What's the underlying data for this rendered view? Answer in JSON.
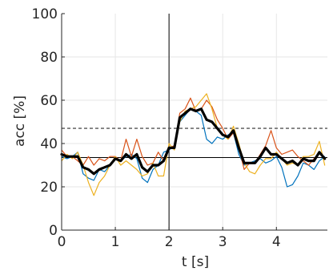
{
  "chart_data": {
    "type": "line",
    "title": "",
    "xlabel": "t [s]",
    "ylabel": "acc [%]",
    "xlim": [
      0,
      4.95
    ],
    "ylim": [
      0,
      100
    ],
    "xticks": [
      0,
      1,
      2,
      3,
      4
    ],
    "xtick_labels": [
      "0",
      "1",
      "2",
      "3",
      "4"
    ],
    "yticks": [
      0,
      20,
      40,
      60,
      80,
      100
    ],
    "ytick_labels": [
      "0",
      "20",
      "40",
      "60",
      "80",
      "100"
    ],
    "grid": true,
    "legend": "none",
    "reference_lines": [
      {
        "orientation": "vertical",
        "x": 2,
        "style": "solid",
        "color": "#000000"
      },
      {
        "orientation": "horizontal",
        "y": 33.5,
        "style": "solid",
        "color": "#000000"
      },
      {
        "orientation": "horizontal",
        "y": 47,
        "style": "dashed",
        "color": "#555555"
      }
    ],
    "x": [
      0,
      0.1,
      0.2,
      0.3,
      0.4,
      0.5,
      0.6,
      0.7,
      0.8,
      0.9,
      1.0,
      1.1,
      1.2,
      1.3,
      1.4,
      1.5,
      1.6,
      1.7,
      1.8,
      1.9,
      2.0,
      2.1,
      2.2,
      2.3,
      2.4,
      2.5,
      2.6,
      2.7,
      2.8,
      2.9,
      3.0,
      3.1,
      3.2,
      3.3,
      3.4,
      3.5,
      3.6,
      3.7,
      3.8,
      3.9,
      4.0,
      4.1,
      4.2,
      4.3,
      4.4,
      4.5,
      4.6,
      4.7,
      4.8,
      4.9
    ],
    "series": [
      {
        "color": "#0072BD",
        "width": 1.2,
        "values": [
          34,
          33,
          34,
          36,
          26,
          24,
          23,
          28,
          27,
          30,
          33,
          32,
          34,
          35,
          33,
          24,
          22,
          28,
          30,
          36,
          37,
          39,
          50,
          53,
          56,
          55,
          53,
          42,
          40,
          43,
          42,
          44,
          45,
          35,
          30,
          31,
          32,
          33,
          31,
          32,
          34,
          29,
          20,
          21,
          25,
          31,
          30,
          28,
          32,
          34
        ]
      },
      {
        "color": "#D95319",
        "width": 1.2,
        "values": [
          37,
          34,
          34,
          32,
          30,
          34,
          30,
          33,
          32,
          34,
          34,
          32,
          42,
          34,
          42,
          34,
          30,
          31,
          36,
          32,
          38,
          39,
          54,
          56,
          61,
          55,
          56,
          60,
          57,
          51,
          47,
          42,
          45,
          38,
          28,
          31,
          31,
          35,
          39,
          46,
          38,
          35,
          36,
          37,
          34,
          32,
          30,
          33,
          36,
          33
        ]
      },
      {
        "color": "#EDB120",
        "width": 1.2,
        "values": [
          32,
          35,
          33,
          36,
          30,
          22,
          16,
          22,
          25,
          30,
          34,
          30,
          32,
          30,
          28,
          25,
          26,
          31,
          25,
          25,
          40,
          37,
          50,
          55,
          56,
          57,
          60,
          63,
          56,
          47,
          44,
          42,
          48,
          40,
          31,
          27,
          26,
          30,
          33,
          33,
          36,
          33,
          30,
          31,
          30,
          34,
          34,
          35,
          41,
          30
        ]
      },
      {
        "color": "#000000",
        "width": 3.2,
        "values": [
          35,
          34,
          34,
          34,
          29,
          28,
          26,
          28,
          29,
          30,
          33,
          32,
          35,
          33,
          35,
          29,
          27,
          30,
          30,
          32,
          38,
          38,
          52,
          54,
          56,
          55,
          56,
          51,
          50,
          47,
          44,
          43,
          46,
          38,
          31,
          31,
          31,
          34,
          38,
          35,
          35,
          33,
          31,
          32,
          30,
          33,
          32,
          32,
          36,
          33
        ]
      }
    ]
  }
}
